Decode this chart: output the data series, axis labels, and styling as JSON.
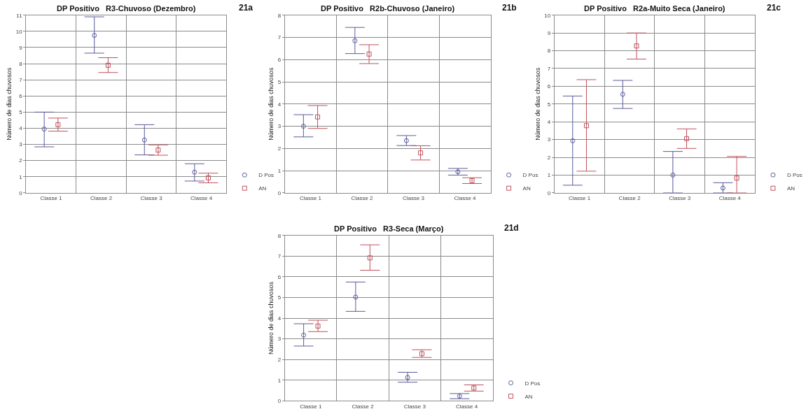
{
  "chart_data": [
    {
      "type": "scatter",
      "title": "DP Positivo   R3-Chuvoso (Dezembro)",
      "annotations": [
        "21a"
      ],
      "ylabel": "Número de dias chuvosos",
      "categories": [
        "Classe 1",
        "Classe 2",
        "Classe 3",
        "Classe 4"
      ],
      "ylim": [
        0,
        11
      ],
      "yticks": [
        0,
        1,
        2,
        3,
        4,
        5,
        6,
        7,
        8,
        9,
        10,
        11
      ],
      "grid": true,
      "legend": "bottom right",
      "series": [
        {
          "name": "D Pos",
          "color": "#5a5a9c",
          "marker": "circle",
          "values": [
            3.95,
            9.75,
            3.27,
            1.28
          ],
          "errors": [
            [
              2.85,
              5.0
            ],
            [
              8.65,
              10.9
            ],
            [
              2.35,
              4.22
            ],
            [
              0.73,
              1.8
            ]
          ]
        },
        {
          "name": "AN",
          "color": "#c0505c",
          "marker": "square",
          "values": [
            4.22,
            7.9,
            2.65,
            0.93
          ],
          "errors": [
            [
              3.82,
              4.63
            ],
            [
              7.45,
              8.37
            ],
            [
              2.33,
              2.97
            ],
            [
              0.62,
              1.22
            ]
          ]
        }
      ]
    },
    {
      "type": "scatter",
      "title": "DP Positivo   R2b-Chuvoso (Janeiro)",
      "annotations": [
        "21b"
      ],
      "ylabel": "Número de dias chuvosos",
      "categories": [
        "Classe 1",
        "Classe 2",
        "Classe 3",
        "Classe 4"
      ],
      "ylim": [
        0,
        8
      ],
      "yticks": [
        0,
        1,
        2,
        3,
        4,
        5,
        6,
        7,
        8
      ],
      "grid": true,
      "legend": "bottom right",
      "series": [
        {
          "name": "D Pos",
          "color": "#5a5a9c",
          "marker": "circle",
          "values": [
            3.0,
            6.85,
            2.35,
            0.95
          ],
          "errors": [
            [
              2.52,
              3.52
            ],
            [
              6.27,
              7.45
            ],
            [
              2.13,
              2.58
            ],
            [
              0.8,
              1.1
            ]
          ]
        },
        {
          "name": "AN",
          "color": "#c0505c",
          "marker": "square",
          "values": [
            3.42,
            6.25,
            1.8,
            0.55
          ],
          "errors": [
            [
              2.9,
              3.93
            ],
            [
              5.82,
              6.67
            ],
            [
              1.48,
              2.12
            ],
            [
              0.42,
              0.68
            ]
          ]
        }
      ]
    },
    {
      "type": "scatter",
      "title": "DP Positivo   R2a-Muito Seca (Janeiro)",
      "annotations": [
        "21c"
      ],
      "ylabel": "Número de dias chuvosos",
      "categories": [
        "Classe 1",
        "Classe 2",
        "Classe 3",
        "Classe 4"
      ],
      "ylim": [
        0,
        10
      ],
      "yticks": [
        0,
        1,
        2,
        3,
        4,
        5,
        6,
        7,
        8,
        9,
        10
      ],
      "grid": true,
      "legend": "bottom right",
      "series": [
        {
          "name": "D Pos",
          "color": "#5a5a9c",
          "marker": "circle",
          "values": [
            2.93,
            5.55,
            1.0,
            0.27
          ],
          "errors": [
            [
              0.43,
              5.45
            ],
            [
              4.75,
              6.33
            ],
            [
              0,
              2.33
            ],
            [
              0,
              0.57
            ]
          ]
        },
        {
          "name": "AN",
          "color": "#c0505c",
          "marker": "square",
          "values": [
            3.78,
            8.27,
            3.05,
            0.83
          ],
          "errors": [
            [
              1.22,
              6.37
            ],
            [
              7.53,
              9.0
            ],
            [
              2.5,
              3.6
            ],
            [
              0,
              2.05
            ]
          ]
        }
      ]
    },
    {
      "type": "scatter",
      "title": "DP Positivo   R3-Seca (Março)",
      "annotations": [
        "21d"
      ],
      "ylabel": "Número de dias chuvosos",
      "categories": [
        "Classe 1",
        "Classe 2",
        "Classe 3",
        "Classe 4"
      ],
      "ylim": [
        0,
        8
      ],
      "yticks": [
        0,
        1,
        2,
        3,
        4,
        5,
        6,
        7,
        8
      ],
      "grid": true,
      "legend": "bottom right",
      "series": [
        {
          "name": "D Pos",
          "color": "#5a5a9c",
          "marker": "circle",
          "values": [
            3.18,
            5.02,
            1.13,
            0.23
          ],
          "errors": [
            [
              2.65,
              3.73
            ],
            [
              4.33,
              5.75
            ],
            [
              0.9,
              1.38
            ],
            [
              0.1,
              0.35
            ]
          ]
        },
        {
          "name": "AN",
          "color": "#c0505c",
          "marker": "square",
          "values": [
            3.62,
            6.92,
            2.28,
            0.62
          ],
          "errors": [
            [
              3.35,
              3.9
            ],
            [
              6.32,
              7.55
            ],
            [
              2.1,
              2.47
            ],
            [
              0.47,
              0.77
            ]
          ]
        }
      ]
    }
  ]
}
